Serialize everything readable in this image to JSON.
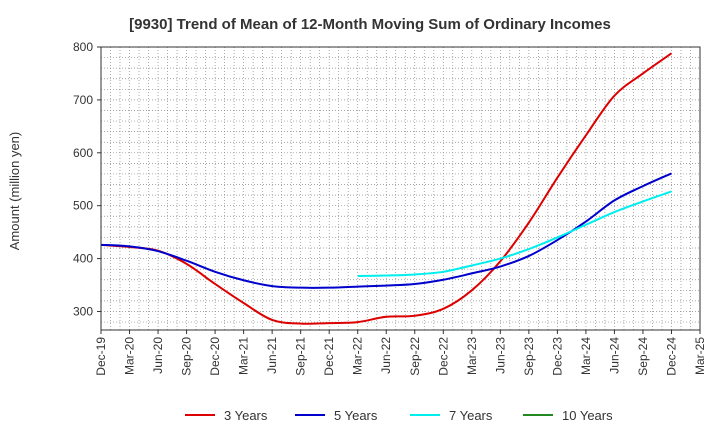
{
  "chart_data": {
    "type": "line",
    "title": "[9930]  Trend of Mean of 12-Month Moving Sum of Ordinary Incomes",
    "xlabel": "",
    "ylabel": "Amount (million yen)",
    "ylim": [
      265,
      800
    ],
    "yticks": [
      300,
      400,
      500,
      600,
      700,
      800
    ],
    "categories": [
      "Dec-19",
      "Mar-20",
      "Jun-20",
      "Sep-20",
      "Dec-20",
      "Mar-21",
      "Jun-21",
      "Sep-21",
      "Dec-21",
      "Mar-22",
      "Jun-22",
      "Sep-22",
      "Dec-22",
      "Mar-23",
      "Jun-23",
      "Sep-23",
      "Dec-23",
      "Mar-24",
      "Jun-24",
      "Sep-24",
      "Dec-24",
      "Mar-25"
    ],
    "grid": true,
    "legend_position": "bottom",
    "series": [
      {
        "name": "3 Years",
        "color": "#dd0000",
        "values": [
          426,
          422,
          415,
          390,
          352,
          316,
          284,
          277,
          278,
          280,
          290,
          292,
          305,
          340,
          395,
          468,
          553,
          633,
          708,
          750,
          788,
          null
        ]
      },
      {
        "name": "5 Years",
        "color": "#0000cc",
        "values": [
          426,
          423,
          414,
          396,
          375,
          359,
          348,
          345,
          345,
          347,
          349,
          352,
          360,
          372,
          385,
          405,
          435,
          470,
          510,
          537,
          561,
          null
        ]
      },
      {
        "name": "7 Years",
        "color": "#00eeee",
        "values": [
          null,
          null,
          null,
          null,
          null,
          null,
          null,
          null,
          null,
          367,
          368,
          370,
          375,
          387,
          400,
          418,
          440,
          464,
          488,
          508,
          527,
          null
        ]
      },
      {
        "name": "10 Years",
        "color": "#228822",
        "values": [
          null,
          null,
          null,
          null,
          null,
          null,
          null,
          null,
          null,
          null,
          null,
          null,
          null,
          null,
          null,
          null,
          null,
          null,
          null,
          null,
          null,
          null
        ]
      }
    ]
  }
}
